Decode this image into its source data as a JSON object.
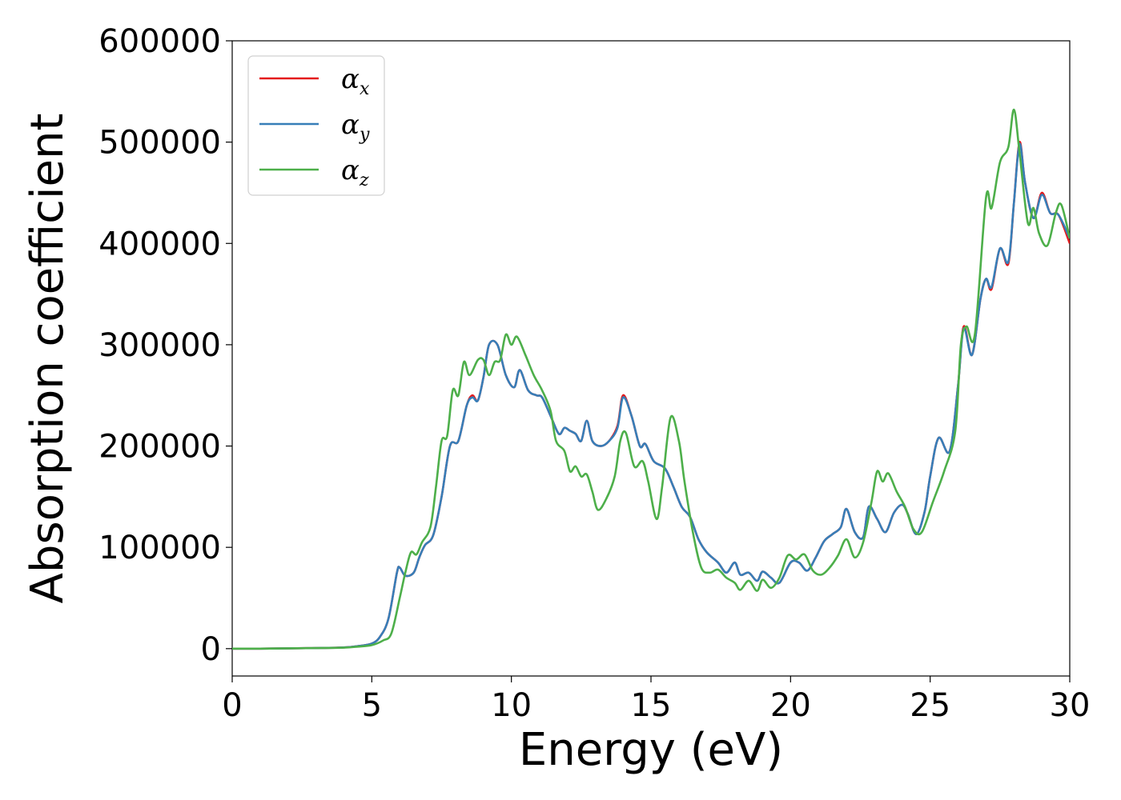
{
  "chart_data": {
    "type": "line",
    "title": "",
    "xlabel": "Energy (eV)",
    "ylabel": "Absorption coefficient",
    "xlim": [
      0,
      30
    ],
    "ylim": [
      -27000,
      600000
    ],
    "xticks": [
      0,
      5,
      10,
      15,
      20,
      25,
      30
    ],
    "yticks": [
      0,
      100000,
      200000,
      300000,
      400000,
      500000,
      600000
    ],
    "grid": false,
    "legend_position": "top-left",
    "series": [
      {
        "name": "αx",
        "symbol": "α",
        "sub": "x",
        "color": "#e41a1c",
        "points": [
          [
            0,
            0
          ],
          [
            1,
            0
          ],
          [
            2,
            300
          ],
          [
            3,
            600
          ],
          [
            4,
            1200
          ],
          [
            4.5,
            2500
          ],
          [
            5,
            5000
          ],
          [
            5.3,
            12000
          ],
          [
            5.6,
            30000
          ],
          [
            5.9,
            75000
          ],
          [
            6,
            80000
          ],
          [
            6.2,
            72000
          ],
          [
            6.5,
            75000
          ],
          [
            6.7,
            90000
          ],
          [
            6.9,
            102000
          ],
          [
            7.2,
            112000
          ],
          [
            7.5,
            150000
          ],
          [
            7.8,
            200000
          ],
          [
            8.1,
            205000
          ],
          [
            8.4,
            240000
          ],
          [
            8.6,
            250000
          ],
          [
            8.8,
            245000
          ],
          [
            9,
            268000
          ],
          [
            9.2,
            300000
          ],
          [
            9.5,
            300000
          ],
          [
            9.8,
            270000
          ],
          [
            10.1,
            258000
          ],
          [
            10.3,
            275000
          ],
          [
            10.6,
            255000
          ],
          [
            10.9,
            250000
          ],
          [
            11.1,
            248000
          ],
          [
            11.4,
            230000
          ],
          [
            11.7,
            212000
          ],
          [
            11.9,
            218000
          ],
          [
            12.1,
            215000
          ],
          [
            12.3,
            212000
          ],
          [
            12.5,
            205000
          ],
          [
            12.7,
            225000
          ],
          [
            12.9,
            205000
          ],
          [
            13.2,
            200000
          ],
          [
            13.5,
            205000
          ],
          [
            13.8,
            220000
          ],
          [
            14,
            250000
          ],
          [
            14.3,
            230000
          ],
          [
            14.6,
            200000
          ],
          [
            14.8,
            202000
          ],
          [
            15.1,
            185000
          ],
          [
            15.5,
            178000
          ],
          [
            15.8,
            160000
          ],
          [
            16.1,
            140000
          ],
          [
            16.4,
            130000
          ],
          [
            16.7,
            108000
          ],
          [
            17,
            95000
          ],
          [
            17.4,
            85000
          ],
          [
            17.7,
            75000
          ],
          [
            18,
            85000
          ],
          [
            18.2,
            73000
          ],
          [
            18.5,
            75000
          ],
          [
            18.8,
            67000
          ],
          [
            19,
            76000
          ],
          [
            19.3,
            70000
          ],
          [
            19.6,
            65000
          ],
          [
            20,
            85000
          ],
          [
            20.3,
            85000
          ],
          [
            20.6,
            77000
          ],
          [
            20.9,
            90000
          ],
          [
            21.2,
            106000
          ],
          [
            21.5,
            113000
          ],
          [
            21.8,
            120000
          ],
          [
            22,
            138000
          ],
          [
            22.3,
            115000
          ],
          [
            22.6,
            110000
          ],
          [
            22.8,
            140000
          ],
          [
            23.1,
            128000
          ],
          [
            23.4,
            115000
          ],
          [
            23.7,
            134000
          ],
          [
            24,
            142000
          ],
          [
            24.2,
            133000
          ],
          [
            24.5,
            113000
          ],
          [
            24.8,
            135000
          ],
          [
            25,
            170000
          ],
          [
            25.3,
            208000
          ],
          [
            25.7,
            195000
          ],
          [
            26,
            260000
          ],
          [
            26.2,
            318000
          ],
          [
            26.5,
            290000
          ],
          [
            26.8,
            345000
          ],
          [
            27,
            365000
          ],
          [
            27.2,
            355000
          ],
          [
            27.5,
            395000
          ],
          [
            27.8,
            380000
          ],
          [
            28,
            440000
          ],
          [
            28.2,
            500000
          ],
          [
            28.4,
            460000
          ],
          [
            28.7,
            425000
          ],
          [
            29,
            450000
          ],
          [
            29.3,
            430000
          ],
          [
            29.6,
            428000
          ],
          [
            30,
            400000
          ]
        ]
      },
      {
        "name": "αy",
        "symbol": "α",
        "sub": "y",
        "color": "#377eb8",
        "points": [
          [
            0,
            0
          ],
          [
            1,
            0
          ],
          [
            2,
            300
          ],
          [
            3,
            600
          ],
          [
            4,
            1200
          ],
          [
            4.5,
            2500
          ],
          [
            5,
            5000
          ],
          [
            5.3,
            12000
          ],
          [
            5.6,
            30000
          ],
          [
            5.9,
            75000
          ],
          [
            6,
            80000
          ],
          [
            6.2,
            72000
          ],
          [
            6.5,
            75000
          ],
          [
            6.7,
            90000
          ],
          [
            6.9,
            102000
          ],
          [
            7.2,
            112000
          ],
          [
            7.5,
            150000
          ],
          [
            7.8,
            200000
          ],
          [
            8.1,
            205000
          ],
          [
            8.4,
            240000
          ],
          [
            8.6,
            248000
          ],
          [
            8.8,
            245000
          ],
          [
            9,
            268000
          ],
          [
            9.2,
            300000
          ],
          [
            9.5,
            300000
          ],
          [
            9.8,
            270000
          ],
          [
            10.1,
            258000
          ],
          [
            10.3,
            275000
          ],
          [
            10.6,
            255000
          ],
          [
            10.9,
            250000
          ],
          [
            11.1,
            248000
          ],
          [
            11.4,
            230000
          ],
          [
            11.7,
            212000
          ],
          [
            11.9,
            218000
          ],
          [
            12.1,
            215000
          ],
          [
            12.3,
            212000
          ],
          [
            12.5,
            205000
          ],
          [
            12.7,
            225000
          ],
          [
            12.9,
            205000
          ],
          [
            13.2,
            200000
          ],
          [
            13.5,
            205000
          ],
          [
            13.8,
            218000
          ],
          [
            14,
            248000
          ],
          [
            14.3,
            230000
          ],
          [
            14.6,
            200000
          ],
          [
            14.8,
            202000
          ],
          [
            15.1,
            185000
          ],
          [
            15.5,
            178000
          ],
          [
            15.8,
            160000
          ],
          [
            16.1,
            140000
          ],
          [
            16.4,
            130000
          ],
          [
            16.7,
            108000
          ],
          [
            17,
            95000
          ],
          [
            17.4,
            85000
          ],
          [
            17.7,
            75000
          ],
          [
            18,
            85000
          ],
          [
            18.2,
            73000
          ],
          [
            18.5,
            75000
          ],
          [
            18.8,
            67000
          ],
          [
            19,
            76000
          ],
          [
            19.3,
            70000
          ],
          [
            19.6,
            65000
          ],
          [
            20,
            85000
          ],
          [
            20.3,
            85000
          ],
          [
            20.6,
            77000
          ],
          [
            20.9,
            90000
          ],
          [
            21.2,
            106000
          ],
          [
            21.5,
            113000
          ],
          [
            21.8,
            120000
          ],
          [
            22,
            138000
          ],
          [
            22.3,
            115000
          ],
          [
            22.6,
            110000
          ],
          [
            22.8,
            140000
          ],
          [
            23.1,
            128000
          ],
          [
            23.4,
            115000
          ],
          [
            23.7,
            134000
          ],
          [
            24,
            142000
          ],
          [
            24.2,
            133000
          ],
          [
            24.5,
            113000
          ],
          [
            24.8,
            135000
          ],
          [
            25,
            170000
          ],
          [
            25.3,
            208000
          ],
          [
            25.7,
            195000
          ],
          [
            26,
            260000
          ],
          [
            26.2,
            316000
          ],
          [
            26.5,
            290000
          ],
          [
            26.8,
            345000
          ],
          [
            27,
            365000
          ],
          [
            27.2,
            357000
          ],
          [
            27.5,
            395000
          ],
          [
            27.8,
            382000
          ],
          [
            28,
            440000
          ],
          [
            28.2,
            498000
          ],
          [
            28.4,
            460000
          ],
          [
            28.7,
            425000
          ],
          [
            29,
            448000
          ],
          [
            29.3,
            430000
          ],
          [
            29.6,
            428000
          ],
          [
            30,
            405000
          ]
        ]
      },
      {
        "name": "αz",
        "symbol": "α",
        "sub": "z",
        "color": "#4daf4a",
        "points": [
          [
            0,
            0
          ],
          [
            1,
            0
          ],
          [
            2,
            300
          ],
          [
            3,
            600
          ],
          [
            4,
            1000
          ],
          [
            4.5,
            2000
          ],
          [
            5,
            3500
          ],
          [
            5.4,
            8000
          ],
          [
            5.7,
            15000
          ],
          [
            6,
            50000
          ],
          [
            6.2,
            75000
          ],
          [
            6.4,
            95000
          ],
          [
            6.6,
            93000
          ],
          [
            6.8,
            105000
          ],
          [
            7.1,
            120000
          ],
          [
            7.3,
            160000
          ],
          [
            7.5,
            205000
          ],
          [
            7.7,
            210000
          ],
          [
            7.9,
            255000
          ],
          [
            8.1,
            250000
          ],
          [
            8.3,
            283000
          ],
          [
            8.5,
            270000
          ],
          [
            8.8,
            285000
          ],
          [
            9,
            285000
          ],
          [
            9.2,
            270000
          ],
          [
            9.4,
            283000
          ],
          [
            9.6,
            285000
          ],
          [
            9.8,
            310000
          ],
          [
            10,
            300000
          ],
          [
            10.2,
            308000
          ],
          [
            10.5,
            290000
          ],
          [
            10.8,
            270000
          ],
          [
            11.1,
            255000
          ],
          [
            11.4,
            235000
          ],
          [
            11.6,
            205000
          ],
          [
            11.9,
            195000
          ],
          [
            12.1,
            175000
          ],
          [
            12.3,
            180000
          ],
          [
            12.5,
            170000
          ],
          [
            12.7,
            172000
          ],
          [
            12.9,
            155000
          ],
          [
            13.1,
            137000
          ],
          [
            13.4,
            148000
          ],
          [
            13.7,
            170000
          ],
          [
            13.9,
            205000
          ],
          [
            14.1,
            213000
          ],
          [
            14.4,
            180000
          ],
          [
            14.7,
            185000
          ],
          [
            14.9,
            165000
          ],
          [
            15.2,
            128000
          ],
          [
            15.4,
            160000
          ],
          [
            15.7,
            228000
          ],
          [
            16,
            205000
          ],
          [
            16.2,
            165000
          ],
          [
            16.5,
            115000
          ],
          [
            16.8,
            80000
          ],
          [
            17.1,
            75000
          ],
          [
            17.4,
            78000
          ],
          [
            17.7,
            70000
          ],
          [
            18,
            65000
          ],
          [
            18.2,
            58000
          ],
          [
            18.5,
            67000
          ],
          [
            18.8,
            57000
          ],
          [
            19,
            68000
          ],
          [
            19.3,
            60000
          ],
          [
            19.6,
            70000
          ],
          [
            19.9,
            92000
          ],
          [
            20.2,
            88000
          ],
          [
            20.5,
            93000
          ],
          [
            20.8,
            77000
          ],
          [
            21.1,
            73000
          ],
          [
            21.4,
            80000
          ],
          [
            21.7,
            92000
          ],
          [
            22,
            108000
          ],
          [
            22.3,
            90000
          ],
          [
            22.6,
            105000
          ],
          [
            22.9,
            145000
          ],
          [
            23.1,
            175000
          ],
          [
            23.3,
            165000
          ],
          [
            23.5,
            173000
          ],
          [
            23.8,
            155000
          ],
          [
            24.1,
            140000
          ],
          [
            24.4,
            118000
          ],
          [
            24.7,
            115000
          ],
          [
            25.1,
            145000
          ],
          [
            25.5,
            175000
          ],
          [
            25.9,
            215000
          ],
          [
            26.1,
            300000
          ],
          [
            26.3,
            318000
          ],
          [
            26.6,
            310000
          ],
          [
            27,
            445000
          ],
          [
            27.2,
            435000
          ],
          [
            27.5,
            480000
          ],
          [
            27.8,
            495000
          ],
          [
            28,
            532000
          ],
          [
            28.2,
            490000
          ],
          [
            28.5,
            420000
          ],
          [
            28.7,
            435000
          ],
          [
            28.9,
            410000
          ],
          [
            29.2,
            398000
          ],
          [
            29.5,
            430000
          ],
          [
            29.7,
            438000
          ],
          [
            30,
            405000
          ]
        ]
      }
    ]
  }
}
